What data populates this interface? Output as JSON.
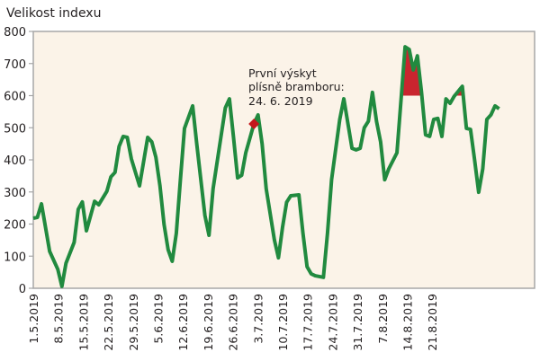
{
  "chart_data": {
    "type": "line",
    "title": "",
    "ylabel": "Velikost indexu",
    "xlabel": "",
    "ylim": [
      0,
      800
    ],
    "yticks": [
      0,
      100,
      200,
      300,
      400,
      500,
      600,
      700,
      800
    ],
    "xtick_labels": [
      "1.5.2019",
      "8.5.2019",
      "15.5.2019",
      "22.5.2019",
      "29.5.2019",
      "5.6.2019",
      "12.6.2019",
      "19.6.2019",
      "26.6.2019",
      "3.7.2019",
      "10.7.2019",
      "17.7.2019",
      "24.7.2019",
      "31.7.2019",
      "7.8.2019",
      "14.8.2019",
      "21.8.2019"
    ],
    "grid": false,
    "highlight_threshold": 600,
    "colors": {
      "line": "#218a3f",
      "highlight": "#c9252f",
      "marker": "#c4161c",
      "plot_bg": "#fbf3e8",
      "frame": "#a7a7a7"
    },
    "series": [
      {
        "points": [
          [
            "1.5.2019",
            218
          ],
          [
            "2.5.2019",
            221
          ],
          [
            "3.5.2019",
            263
          ],
          [
            "5.5.2019",
            115
          ],
          [
            "7.5.2019",
            59
          ],
          [
            "8.5.2019",
            6
          ],
          [
            "9.5.2019",
            78
          ],
          [
            "11.5.2019",
            143
          ],
          [
            "12.5.2019",
            246
          ],
          [
            "13.5.2019",
            269
          ],
          [
            "14.5.2019",
            179
          ],
          [
            "16.5.2019",
            271
          ],
          [
            "17.5.2019",
            260
          ],
          [
            "19.5.2019",
            302
          ],
          [
            "20.5.2019",
            347
          ],
          [
            "21.5.2019",
            361
          ],
          [
            "22.5.2019",
            442
          ],
          [
            "23.5.2019",
            473
          ],
          [
            "24.5.2019",
            470
          ],
          [
            "25.5.2019",
            403
          ],
          [
            "27.5.2019",
            319
          ],
          [
            "29.5.2019",
            470
          ],
          [
            "30.5.2019",
            456
          ],
          [
            "31.5.2019",
            408
          ],
          [
            "1.6.2019",
            319
          ],
          [
            "2.6.2019",
            199
          ],
          [
            "3.6.2019",
            120
          ],
          [
            "4.6.2019",
            84
          ],
          [
            "5.6.2019",
            171
          ],
          [
            "6.6.2019",
            338
          ],
          [
            "7.6.2019",
            498
          ],
          [
            "9.6.2019",
            568
          ],
          [
            "10.6.2019",
            450
          ],
          [
            "12.6.2019",
            227
          ],
          [
            "13.6.2019",
            165
          ],
          [
            "14.6.2019",
            310
          ],
          [
            "16.6.2019",
            478
          ],
          [
            "17.6.2019",
            562
          ],
          [
            "18.6.2019",
            590
          ],
          [
            "19.6.2019",
            470
          ],
          [
            "20.6.2019",
            344
          ],
          [
            "21.6.2019",
            352
          ],
          [
            "22.6.2019",
            422
          ],
          [
            "24.6.2019",
            512
          ],
          [
            "25.6.2019",
            540
          ],
          [
            "26.6.2019",
            450
          ],
          [
            "27.6.2019",
            310
          ],
          [
            "29.6.2019",
            151
          ],
          [
            "30.6.2019",
            95
          ],
          [
            "1.7.2019",
            190
          ],
          [
            "2.7.2019",
            268
          ],
          [
            "3.7.2019",
            288
          ],
          [
            "5.7.2019",
            291
          ],
          [
            "6.7.2019",
            171
          ],
          [
            "7.7.2019",
            67
          ],
          [
            "8.7.2019",
            45
          ],
          [
            "9.7.2019",
            39
          ],
          [
            "11.7.2019",
            34
          ],
          [
            "12.7.2019",
            171
          ],
          [
            "13.7.2019",
            338
          ],
          [
            "15.7.2019",
            526
          ],
          [
            "16.7.2019",
            590
          ],
          [
            "18.7.2019",
            436
          ],
          [
            "19.7.2019",
            431
          ],
          [
            "20.7.2019",
            436
          ],
          [
            "21.7.2019",
            500
          ],
          [
            "22.7.2019",
            520
          ],
          [
            "23.7.2019",
            610
          ],
          [
            "24.7.2019",
            520
          ],
          [
            "25.7.2019",
            456
          ],
          [
            "26.7.2019",
            338
          ],
          [
            "27.7.2019",
            372
          ],
          [
            "29.7.2019",
            422
          ],
          [
            "31.7.2019",
            752
          ],
          [
            "1.8.2019",
            744
          ],
          [
            "2.8.2019",
            680
          ],
          [
            "3.8.2019",
            724
          ],
          [
            "4.8.2019",
            612
          ],
          [
            "5.8.2019",
            478
          ],
          [
            "6.8.2019",
            473
          ],
          [
            "7.8.2019",
            526
          ],
          [
            "8.8.2019",
            529
          ],
          [
            "9.8.2019",
            473
          ],
          [
            "10.8.2019",
            590
          ],
          [
            "11.8.2019",
            576
          ],
          [
            "12.8.2019",
            598
          ],
          [
            "14.8.2019",
            629
          ],
          [
            "15.8.2019",
            498
          ],
          [
            "16.8.2019",
            495
          ],
          [
            "17.8.2019",
            400
          ],
          [
            "18.8.2019",
            299
          ],
          [
            "19.8.2019",
            372
          ],
          [
            "20.8.2019",
            526
          ],
          [
            "21.8.2019",
            540
          ],
          [
            "22.8.2019",
            568
          ],
          [
            "23.8.2019",
            559
          ]
        ]
      }
    ],
    "annotation": {
      "date": "24.6.2019",
      "value": 512,
      "marker": "diamond",
      "lines": [
        "První výskyt",
        "plísně bramboru:",
        "24. 6. 2019"
      ]
    }
  }
}
